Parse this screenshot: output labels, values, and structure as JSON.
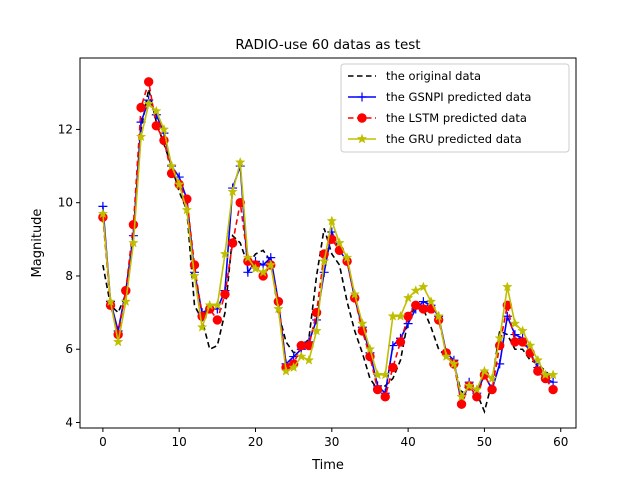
{
  "chart_data": {
    "type": "line",
    "title": "RADIO-use 60 datas as test",
    "xlabel": "Time",
    "ylabel": "Magnitude",
    "xlim": [
      -3,
      62
    ],
    "ylim": [
      3.85,
      13.95
    ],
    "xticks": [
      0,
      10,
      20,
      30,
      40,
      50,
      60
    ],
    "yticks": [
      4,
      6,
      8,
      10,
      12
    ],
    "legend_position": "top-right",
    "x": [
      0,
      1,
      2,
      3,
      4,
      5,
      6,
      7,
      8,
      9,
      10,
      11,
      12,
      13,
      14,
      15,
      16,
      17,
      18,
      19,
      20,
      21,
      22,
      23,
      24,
      25,
      26,
      27,
      28,
      29,
      30,
      31,
      32,
      33,
      34,
      35,
      36,
      37,
      38,
      39,
      40,
      41,
      42,
      43,
      44,
      45,
      46,
      47,
      48,
      49,
      50,
      51,
      52,
      53,
      54,
      55,
      56,
      57,
      58,
      59
    ],
    "series": [
      {
        "name": "the original data",
        "color": "#000000",
        "style": "dashed",
        "marker": "none",
        "values": [
          8.3,
          7.2,
          7.0,
          7.5,
          9.2,
          12.0,
          13.1,
          12.2,
          11.6,
          11.0,
          10.3,
          9.8,
          7.2,
          6.8,
          6.0,
          6.1,
          7.0,
          9.1,
          8.9,
          8.3,
          8.6,
          8.7,
          8.4,
          7.0,
          6.2,
          5.9,
          6.0,
          6.3,
          8.0,
          9.3,
          8.6,
          8.3,
          7.3,
          6.5,
          5.9,
          5.2,
          4.9,
          5.0,
          5.2,
          5.7,
          6.8,
          7.2,
          7.1,
          6.6,
          6.0,
          5.8,
          5.6,
          4.8,
          5.1,
          4.8,
          4.3,
          5.1,
          6.5,
          6.4,
          6.0,
          6.0,
          5.7,
          5.6,
          5.4,
          5.2
        ]
      },
      {
        "name": "the GSNPI predicted data",
        "color": "#0000ff",
        "style": "solid",
        "marker": "plus",
        "values": [
          9.9,
          7.3,
          6.5,
          7.6,
          9.1,
          12.2,
          12.8,
          12.4,
          11.9,
          11.0,
          10.7,
          10.1,
          8.1,
          7.0,
          7.1,
          7.1,
          7.6,
          10.4,
          11.0,
          8.1,
          8.4,
          8.3,
          8.5,
          7.3,
          5.6,
          5.8,
          6.0,
          6.2,
          6.8,
          8.1,
          9.2,
          8.7,
          8.4,
          7.4,
          6.6,
          5.9,
          5.0,
          4.8,
          6.1,
          6.3,
          6.7,
          7.1,
          7.3,
          7.2,
          6.9,
          5.9,
          5.7,
          4.5,
          5.1,
          4.8,
          5.3,
          4.9,
          5.6,
          6.9,
          6.4,
          6.3,
          5.9,
          5.5,
          5.2,
          5.1
        ]
      },
      {
        "name": "the LSTM predicted data",
        "color": "#ff0000",
        "style": "dashed",
        "marker": "circle",
        "values": [
          9.6,
          7.2,
          6.4,
          7.6,
          9.4,
          12.6,
          13.3,
          12.1,
          11.7,
          10.8,
          10.5,
          10.1,
          8.3,
          6.9,
          7.1,
          6.8,
          7.5,
          8.9,
          10.0,
          8.4,
          8.3,
          8.0,
          8.3,
          7.3,
          5.5,
          5.6,
          6.1,
          6.1,
          7.0,
          8.6,
          9.0,
          8.7,
          8.4,
          7.4,
          6.5,
          5.8,
          4.9,
          4.7,
          5.5,
          6.2,
          6.9,
          7.2,
          7.1,
          7.1,
          6.8,
          5.9,
          5.6,
          4.5,
          5.0,
          4.7,
          5.3,
          4.9,
          6.1,
          7.2,
          6.2,
          6.2,
          5.9,
          5.4,
          5.2,
          4.9
        ]
      },
      {
        "name": "the GRU predicted data",
        "color": "#bfbf00",
        "style": "solid",
        "marker": "star",
        "values": [
          9.7,
          7.3,
          6.2,
          7.3,
          8.9,
          11.8,
          12.7,
          12.5,
          12.0,
          11.0,
          10.5,
          9.8,
          8.0,
          6.6,
          7.2,
          7.2,
          8.6,
          10.3,
          11.1,
          8.5,
          8.2,
          8.1,
          8.3,
          7.1,
          5.4,
          5.5,
          5.8,
          5.7,
          6.5,
          8.4,
          9.5,
          8.9,
          8.5,
          7.5,
          6.7,
          6.0,
          5.3,
          5.3,
          6.9,
          6.9,
          7.4,
          7.6,
          7.7,
          7.3,
          6.9,
          5.8,
          5.6,
          4.7,
          5.0,
          4.9,
          5.4,
          5.2,
          6.3,
          7.7,
          6.7,
          6.5,
          6.1,
          5.7,
          5.3,
          5.3
        ]
      }
    ]
  }
}
